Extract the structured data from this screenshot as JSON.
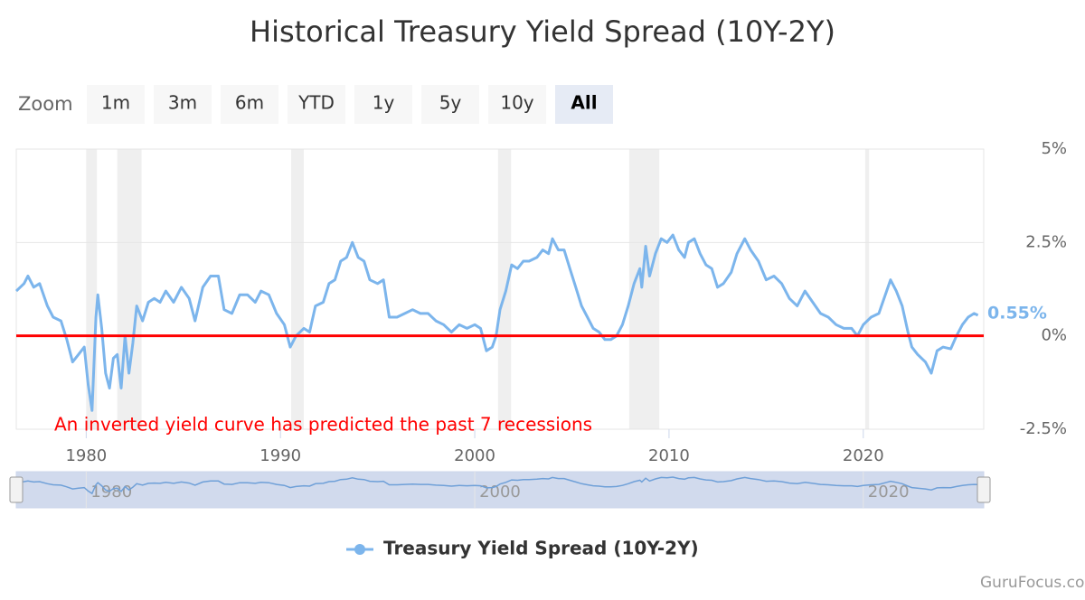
{
  "chart_data": {
    "type": "line",
    "title": "Historical Treasury Yield Spread (10Y-2Y)",
    "zoom": {
      "label": "Zoom",
      "buttons": [
        "1m",
        "3m",
        "6m",
        "YTD",
        "1y",
        "5y",
        "10y",
        "All"
      ],
      "selected": "All"
    },
    "annotation": "An inverted yield curve has predicted the past 7 recessions",
    "credit": "GuruFocus.com",
    "last_value_label": "0.55%",
    "reference_line": 0,
    "reference_color": "#ff0000",
    "recessions": [
      [
        1980.0,
        1980.55
      ],
      [
        1981.6,
        1982.85
      ],
      [
        1990.55,
        1991.2
      ],
      [
        2001.2,
        2001.87
      ],
      [
        2007.95,
        2009.5
      ],
      [
        2020.1,
        2020.3
      ]
    ],
    "xlim": [
      1976.4,
      2026.2
    ],
    "xticks": [
      1980,
      1990,
      2000,
      2010,
      2020
    ],
    "navigator_xticks": [
      1980,
      2000,
      2020
    ],
    "ylim": [
      -2.5,
      5
    ],
    "yticks": [
      {
        "value": -2.5,
        "label": "-2.5%"
      },
      {
        "value": 0,
        "label": "0%"
      },
      {
        "value": 2.5,
        "label": "2.5%"
      },
      {
        "value": 5,
        "label": "5%"
      }
    ],
    "grid": true,
    "x": [
      1976.4,
      1976.8,
      1977.0,
      1977.3,
      1977.6,
      1978.0,
      1978.3,
      1978.7,
      1979.0,
      1979.3,
      1979.6,
      1979.9,
      1980.1,
      1980.3,
      1980.5,
      1980.6,
      1980.8,
      1981.0,
      1981.2,
      1981.4,
      1981.6,
      1981.8,
      1982.0,
      1982.2,
      1982.4,
      1982.6,
      1982.9,
      1983.2,
      1983.5,
      1983.8,
      1984.1,
      1984.5,
      1984.9,
      1985.3,
      1985.6,
      1986.0,
      1986.4,
      1986.8,
      1987.1,
      1987.5,
      1987.9,
      1988.3,
      1988.7,
      1989.0,
      1989.4,
      1989.8,
      1990.2,
      1990.5,
      1990.8,
      1991.2,
      1991.5,
      1991.8,
      1992.2,
      1992.5,
      1992.8,
      1993.1,
      1993.4,
      1993.7,
      1994.0,
      1994.3,
      1994.6,
      1995.0,
      1995.3,
      1995.6,
      1996.0,
      1996.4,
      1996.8,
      1997.2,
      1997.6,
      1998.0,
      1998.4,
      1998.8,
      1999.2,
      1999.6,
      2000.0,
      2000.3,
      2000.6,
      2000.9,
      2001.1,
      2001.3,
      2001.6,
      2001.9,
      2002.2,
      2002.5,
      2002.8,
      2003.2,
      2003.5,
      2003.8,
      2004.0,
      2004.3,
      2004.6,
      2004.9,
      2005.2,
      2005.5,
      2005.8,
      2006.1,
      2006.4,
      2006.7,
      2007.0,
      2007.3,
      2007.6,
      2007.9,
      2008.2,
      2008.5,
      2008.6,
      2008.8,
      2009.0,
      2009.3,
      2009.6,
      2009.9,
      2010.2,
      2010.5,
      2010.8,
      2011.0,
      2011.3,
      2011.6,
      2011.9,
      2012.2,
      2012.5,
      2012.8,
      2013.2,
      2013.5,
      2013.9,
      2014.2,
      2014.6,
      2015.0,
      2015.4,
      2015.8,
      2016.2,
      2016.6,
      2017.0,
      2017.4,
      2017.8,
      2018.2,
      2018.6,
      2019.0,
      2019.4,
      2019.7,
      2020.0,
      2020.4,
      2020.8,
      2021.2,
      2021.4,
      2021.7,
      2022.0,
      2022.3,
      2022.5,
      2022.8,
      2023.2,
      2023.5,
      2023.8,
      2024.1,
      2024.5,
      2024.8,
      2025.1,
      2025.4,
      2025.7,
      2025.9
    ],
    "series": [
      {
        "name": "Treasury Yield Spread (10Y-2Y)",
        "color": "#7cb5ec",
        "values": [
          1.2,
          1.4,
          1.6,
          1.3,
          1.4,
          0.8,
          0.5,
          0.4,
          -0.1,
          -0.7,
          -0.5,
          -0.3,
          -1.3,
          -2.0,
          0.5,
          1.1,
          0.2,
          -1.0,
          -1.4,
          -0.6,
          -0.5,
          -1.4,
          0.0,
          -1.0,
          -0.2,
          0.8,
          0.4,
          0.9,
          1.0,
          0.9,
          1.2,
          0.9,
          1.3,
          1.0,
          0.4,
          1.3,
          1.6,
          1.6,
          0.7,
          0.6,
          1.1,
          1.1,
          0.9,
          1.2,
          1.1,
          0.6,
          0.3,
          -0.3,
          0.0,
          0.2,
          0.1,
          0.8,
          0.9,
          1.4,
          1.5,
          2.0,
          2.1,
          2.5,
          2.1,
          2.0,
          1.5,
          1.4,
          1.5,
          0.5,
          0.5,
          0.6,
          0.7,
          0.6,
          0.6,
          0.4,
          0.3,
          0.1,
          0.3,
          0.2,
          0.3,
          0.2,
          -0.4,
          -0.3,
          0.0,
          0.7,
          1.2,
          1.9,
          1.8,
          2.0,
          2.0,
          2.1,
          2.3,
          2.2,
          2.6,
          2.3,
          2.3,
          1.8,
          1.3,
          0.8,
          0.5,
          0.2,
          0.1,
          -0.1,
          -0.1,
          0.0,
          0.3,
          0.8,
          1.4,
          1.8,
          1.3,
          2.4,
          1.6,
          2.2,
          2.6,
          2.5,
          2.7,
          2.3,
          2.1,
          2.5,
          2.6,
          2.2,
          1.9,
          1.8,
          1.3,
          1.4,
          1.7,
          2.2,
          2.6,
          2.3,
          2.0,
          1.5,
          1.6,
          1.4,
          1.0,
          0.8,
          1.2,
          0.9,
          0.6,
          0.5,
          0.3,
          0.2,
          0.2,
          0.0,
          0.3,
          0.5,
          0.6,
          1.2,
          1.5,
          1.2,
          0.8,
          0.1,
          -0.3,
          -0.5,
          -0.7,
          -1.0,
          -0.4,
          -0.3,
          -0.35,
          0.0,
          0.3,
          0.5,
          0.6,
          0.55
        ]
      }
    ]
  }
}
